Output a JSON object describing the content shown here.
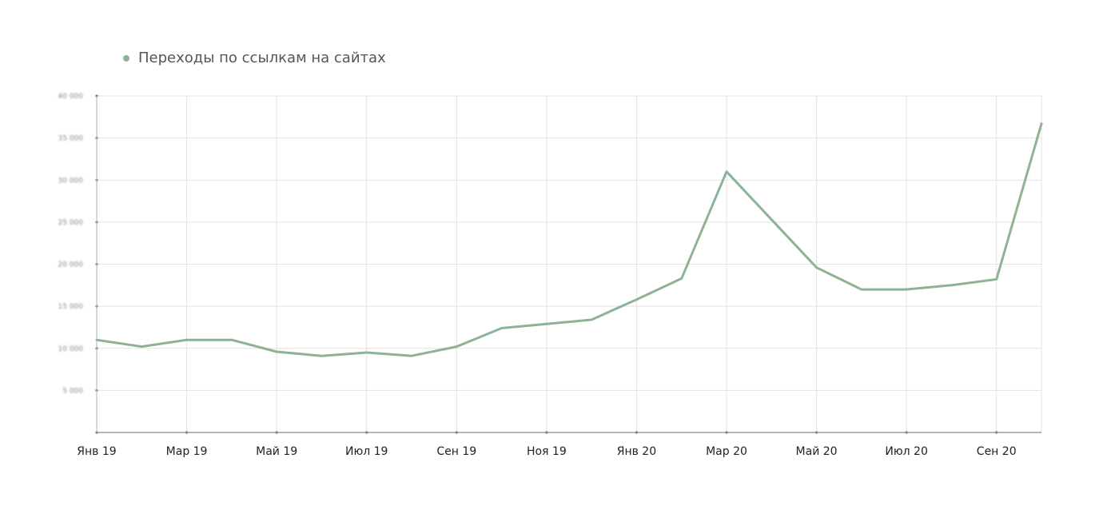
{
  "chart_data": {
    "type": "line",
    "legend": {
      "position": "top-left"
    },
    "grid": true,
    "x": [
      "Янв 19",
      "Фев 19",
      "Мар 19",
      "Апр 19",
      "Май 19",
      "Июн 19",
      "Июл 19",
      "Авг 19",
      "Сен 19",
      "Окт 19",
      "Ноя 19",
      "Дек 19",
      "Янв 20",
      "Фев 20",
      "Мар 20",
      "Апр 20",
      "Май 20",
      "Июн 20",
      "Июл 20",
      "Авг 20",
      "Сен 20",
      "Окт 20"
    ],
    "x_tick_labels": [
      "Янв 19",
      "Мар 19",
      "Май 19",
      "Июл 19",
      "Сен 19",
      "Ноя 19",
      "Янв 20",
      "Мар 20",
      "Май 20",
      "Июл 20",
      "Сен 20"
    ],
    "y_ticks": [
      "5 000",
      "10 000",
      "15 000",
      "20 000",
      "25 000",
      "30 000",
      "35 000",
      "40 000"
    ],
    "ylim": [
      0,
      40000
    ],
    "series": [
      {
        "name": "Переходы по ссылкам на сайтах",
        "color": "#8db396",
        "values": [
          11000,
          10200,
          11000,
          11000,
          9600,
          9100,
          9500,
          9100,
          10200,
          12400,
          12900,
          13400,
          15800,
          18300,
          31000,
          25300,
          19600,
          17000,
          17000,
          17500,
          18200,
          36700
        ]
      }
    ]
  }
}
